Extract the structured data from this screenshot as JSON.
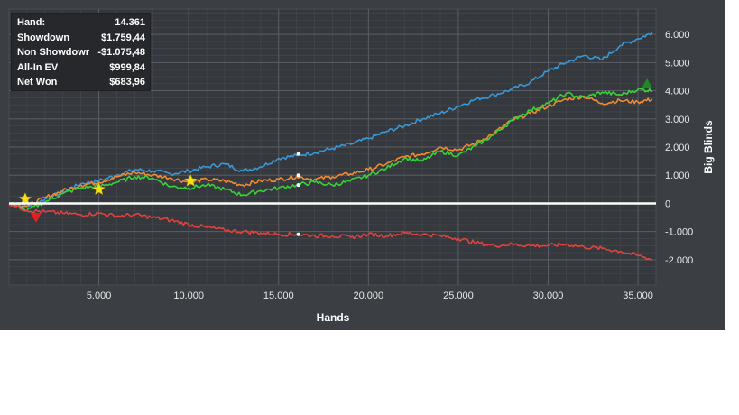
{
  "info_box": [
    {
      "label": "Hand:",
      "value": "14.361"
    },
    {
      "label": "Showdown",
      "value": "$1.759,44"
    },
    {
      "label": "Non Showdown",
      "value": "-$1.075,48"
    },
    {
      "label": "All-In EV",
      "value": "$999,84"
    },
    {
      "label": "Net Won",
      "value": "$683,96"
    }
  ],
  "chart_data": {
    "type": "line",
    "title": "",
    "xlabel": "Hands",
    "ylabel": "Big Blinds",
    "xlim": [
      0,
      36000
    ],
    "ylim": [
      -2900,
      6900
    ],
    "x_ticks": [
      5000,
      10000,
      15000,
      20000,
      25000,
      30000,
      35000
    ],
    "x_tick_labels": [
      "5.000",
      "10.000",
      "15.000",
      "20.000",
      "25.000",
      "30.000",
      "35.000"
    ],
    "y_ticks": [
      6000,
      5000,
      4000,
      3000,
      2000,
      1000,
      0,
      -1000,
      -2000
    ],
    "y_tick_labels": [
      "6.000",
      "5.000",
      "4.000",
      "3.000",
      "2.000",
      "1.000",
      "0",
      "-1.000",
      "-2.000"
    ],
    "grid": true,
    "legend": "none",
    "zero_line_color": "#ffffff",
    "series": [
      {
        "color": "#3a97d6",
        "x": [
          0,
          1000,
          2000,
          3000,
          4000,
          5000,
          6000,
          7000,
          8000,
          9000,
          10000,
          11000,
          12000,
          13000,
          14000,
          15000,
          16000,
          17000,
          18000,
          19000,
          20000,
          21000,
          22000,
          23000,
          24000,
          25000,
          26000,
          27000,
          28000,
          29000,
          30000,
          31000,
          32000,
          33000,
          34000,
          35000,
          35800
        ],
        "y": [
          0,
          -100,
          150,
          400,
          700,
          800,
          1000,
          1200,
          1150,
          1050,
          1150,
          1300,
          1400,
          1150,
          1300,
          1600,
          1700,
          1800,
          1950,
          2100,
          2300,
          2550,
          2750,
          3000,
          3200,
          3450,
          3700,
          3850,
          4050,
          4300,
          4700,
          5000,
          5250,
          5100,
          5600,
          5850,
          6050
        ]
      },
      {
        "color": "#f08a32",
        "x": [
          0,
          1000,
          2000,
          3000,
          4000,
          5000,
          6000,
          7000,
          8000,
          9000,
          10000,
          11000,
          12000,
          13000,
          14000,
          15000,
          16000,
          17000,
          18000,
          19000,
          20000,
          21000,
          22000,
          23000,
          24000,
          25000,
          26000,
          27000,
          28000,
          29000,
          30000,
          31000,
          32000,
          33000,
          34000,
          35000,
          35800
        ],
        "y": [
          0,
          -100,
          200,
          450,
          650,
          750,
          950,
          1100,
          1000,
          900,
          750,
          850,
          800,
          650,
          800,
          850,
          950,
          850,
          950,
          1050,
          1200,
          1400,
          1650,
          1750,
          2000,
          1900,
          2150,
          2500,
          2950,
          3200,
          3450,
          3700,
          3800,
          3550,
          3650,
          3600,
          3700
        ]
      },
      {
        "color": "#39d139",
        "x": [
          0,
          1000,
          2000,
          3000,
          4000,
          5000,
          6000,
          7000,
          8000,
          9000,
          10000,
          11000,
          12000,
          13000,
          14000,
          15000,
          16000,
          17000,
          18000,
          19000,
          20000,
          21000,
          22000,
          23000,
          24000,
          25000,
          26000,
          27000,
          28000,
          29000,
          30000,
          31000,
          32000,
          33000,
          34000,
          35000,
          35800
        ],
        "y": [
          0,
          -250,
          50,
          350,
          550,
          600,
          750,
          950,
          900,
          600,
          550,
          650,
          500,
          300,
          450,
          550,
          650,
          750,
          650,
          800,
          1000,
          1250,
          1600,
          1500,
          1850,
          1700,
          2050,
          2450,
          2950,
          3300,
          3550,
          3900,
          3750,
          3950,
          3850,
          4050,
          4000
        ]
      },
      {
        "color": "#e0423d",
        "x": [
          0,
          1000,
          2000,
          3000,
          4000,
          5000,
          6000,
          7000,
          8000,
          9000,
          10000,
          11000,
          12000,
          13000,
          14000,
          15000,
          16000,
          17000,
          18000,
          19000,
          20000,
          21000,
          22000,
          23000,
          24000,
          25000,
          26000,
          27000,
          28000,
          29000,
          30000,
          31000,
          32000,
          33000,
          34000,
          35000,
          35800
        ],
        "y": [
          0,
          -250,
          -300,
          -350,
          -400,
          -350,
          -450,
          -400,
          -500,
          -600,
          -750,
          -850,
          -950,
          -1000,
          -1050,
          -1100,
          -1100,
          -1150,
          -1150,
          -1200,
          -1100,
          -1150,
          -1050,
          -1100,
          -1150,
          -1250,
          -1400,
          -1500,
          -1450,
          -1500,
          -1500,
          -1450,
          -1550,
          -1600,
          -1700,
          -1850,
          -2000
        ]
      }
    ],
    "markers": [
      {
        "type": "star",
        "color": "#f5e20c",
        "x": 900,
        "y": 150
      },
      {
        "type": "star",
        "color": "#f5e20c",
        "x": 5000,
        "y": 500
      },
      {
        "type": "star",
        "color": "#f5e20c",
        "x": 10100,
        "y": 800
      },
      {
        "type": "triangle-down",
        "color": "#e02020",
        "x": 1500,
        "y": -500
      },
      {
        "type": "triangle-up",
        "color": "#1f8a1f",
        "x": 35500,
        "y": 4250
      },
      {
        "type": "dot",
        "color": "#ffffff",
        "x": 16100,
        "y": 1750
      },
      {
        "type": "dot",
        "color": "#ffffff",
        "x": 16100,
        "y": 1000
      },
      {
        "type": "dot",
        "color": "#ffffff",
        "x": 16100,
        "y": 650
      },
      {
        "type": "dot",
        "color": "#ffffff",
        "x": 16100,
        "y": -1100
      }
    ]
  }
}
